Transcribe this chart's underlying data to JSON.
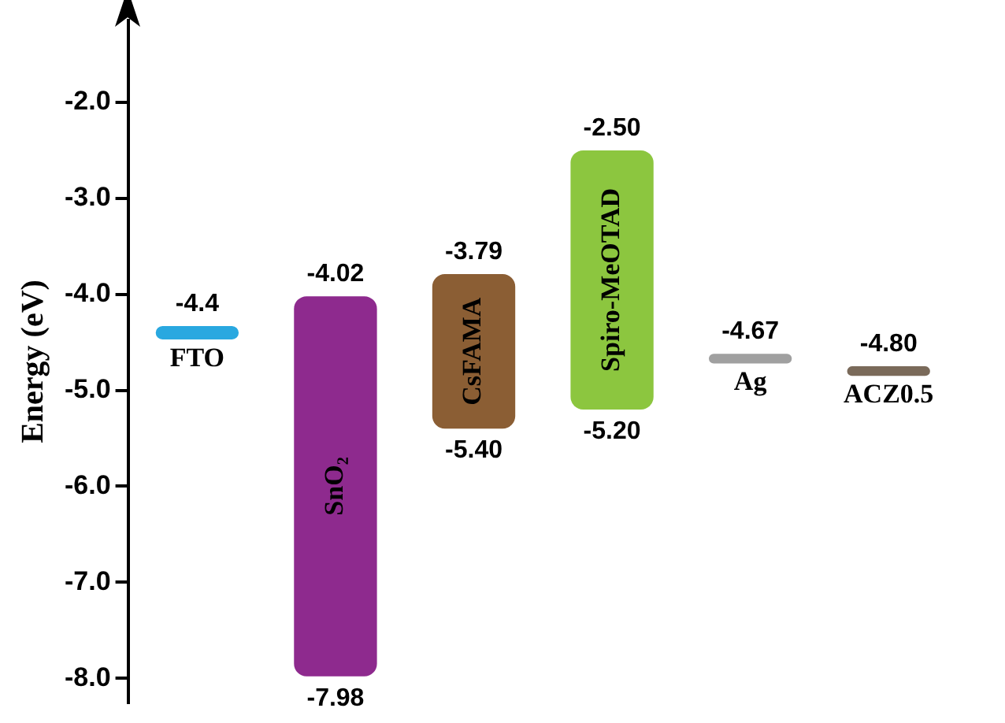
{
  "chart_data": {
    "type": "bar",
    "ylabel": "Energy (eV)",
    "categories": [
      "FTO",
      "SnO₂",
      "CsFAMA",
      "Spiro-MeOTAD",
      "Ag",
      "ACZ0.5"
    ],
    "base": [
      -4.47,
      -7.98,
      -5.4,
      -5.2,
      -4.72,
      -4.85
    ],
    "values": [
      0.14,
      3.96,
      1.61,
      2.7,
      0.1,
      0.1
    ],
    "colors": [
      "#29a8e0",
      "#8e2a8e",
      "#8b5e34",
      "#8cc63f",
      "#a0a0a0",
      "#7a6a5a"
    ],
    "ylim": [
      -8.25,
      -1.15
    ],
    "yticks": [
      {
        "value": -2,
        "label": "-2.0"
      },
      {
        "value": -3,
        "label": "-3.0"
      },
      {
        "value": -4,
        "label": "-4.0"
      },
      {
        "value": -5,
        "label": "-5.0"
      },
      {
        "value": -6,
        "label": "-6.0"
      },
      {
        "value": -7,
        "label": "-7.0"
      },
      {
        "value": -8,
        "label": "-8.0"
      }
    ],
    "tick_labels": "y",
    "grid": false,
    "legend": false,
    "annotations": [
      {
        "text": "-4.4",
        "x": "FTO",
        "y": -4.4
      },
      {
        "text": "-4.02",
        "x": "SnO₂",
        "y": -4.02
      },
      {
        "text": "-7.98",
        "x": "SnO₂",
        "y": -7.98
      },
      {
        "text": "-3.79",
        "x": "CsFAMA",
        "y": -3.79
      },
      {
        "text": "-5.40",
        "x": "CsFAMA",
        "y": -5.4
      },
      {
        "text": "-2.50",
        "x": "Spiro-MeOTAD",
        "y": -2.5
      },
      {
        "text": "-5.20",
        "x": "Spiro-MeOTAD",
        "y": -5.2
      },
      {
        "text": "-4.67",
        "x": "Ag",
        "y": -4.67
      },
      {
        "text": "-4.80",
        "x": "ACZ0.5",
        "y": -4.8
      }
    ]
  }
}
